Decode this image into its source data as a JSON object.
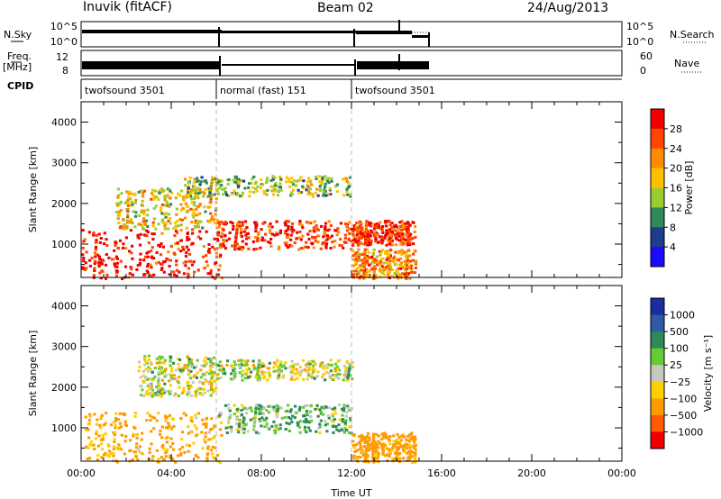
{
  "header": {
    "station": "Inuvik (fitACF)",
    "beam": "Beam 02",
    "date": "24/Aug/2013"
  },
  "side_labels": {
    "nsky": "N.Sky",
    "nsearch": "N.Search",
    "freq_top": "Freq.",
    "freq_unit": "[MHz]",
    "cpid": "CPID",
    "nave": "Nave"
  },
  "nsky_ticks": [
    "10^5",
    "10^0"
  ],
  "freq_ticks_left": [
    "12",
    "8"
  ],
  "freq_ticks_right": [
    "60",
    "0"
  ],
  "cpid_segments": [
    {
      "label": "twofsound 3501",
      "start_h": 0,
      "end_h": 6
    },
    {
      "label": "normal (fast) 151",
      "start_h": 6,
      "end_h": 12
    },
    {
      "label": "twofsound 3501",
      "start_h": 12,
      "end_h": 15.3
    }
  ],
  "power_colorbar": {
    "label": "Power [dB]",
    "ticks": [
      "28",
      "24",
      "20",
      "16",
      "12",
      "8",
      "4"
    ],
    "colors": [
      "#ee0000",
      "#ff4500",
      "#ff8c00",
      "#ffc000",
      "#9acd32",
      "#2e8b57",
      "#1e3c8c",
      "#1a0aff"
    ]
  },
  "velocity_colorbar": {
    "label": "Velocity [m s⁻¹]",
    "ticks": [
      "1000",
      "500",
      "100",
      "25",
      "−25",
      "−100",
      "−500",
      "−1000"
    ],
    "colors": [
      "#1a2ea0",
      "#2e5aa8",
      "#2e8b57",
      "#66cc33",
      "#c8c8c0",
      "#ffd000",
      "#ff9a00",
      "#ff5a00",
      "#ee0000"
    ]
  },
  "chart_data": [
    {
      "type": "heatmap",
      "title": "",
      "xlabel": "",
      "ylabel": "Slant Range [km]",
      "colorbar": "Power [dB]",
      "xlim": [
        0,
        24
      ],
      "ylim": [
        180,
        4500
      ],
      "x_ticks": [
        "00:00",
        "04:00",
        "08:00",
        "12:00",
        "16:00",
        "20:00",
        "00:00"
      ],
      "y_ticks": [
        1000,
        2000,
        3000,
        4000
      ],
      "echo_bands": [
        {
          "t_start": 0,
          "t_end": 6.2,
          "range_low": 180,
          "range_high": 1400,
          "power_db": 26
        },
        {
          "t_start": 1.5,
          "t_end": 6,
          "range_low": 1400,
          "range_high": 2400,
          "power_db": 14
        },
        {
          "t_start": 6,
          "t_end": 12,
          "range_low": 900,
          "range_high": 1600,
          "power_db": 24
        },
        {
          "t_start": 4.5,
          "t_end": 12,
          "range_low": 2200,
          "range_high": 2700,
          "power_db": 10
        },
        {
          "t_start": 12,
          "t_end": 14.8,
          "range_low": 180,
          "range_high": 900,
          "power_db": 18
        },
        {
          "t_start": 12,
          "t_end": 14.8,
          "range_low": 1000,
          "range_high": 1600,
          "power_db": 24
        }
      ]
    },
    {
      "type": "heatmap",
      "title": "",
      "xlabel": "Time UT",
      "ylabel": "Slant Range [km]",
      "colorbar": "Velocity [m s⁻¹]",
      "xlim": [
        0,
        24
      ],
      "ylim": [
        180,
        4500
      ],
      "x_ticks": [
        "00:00",
        "04:00",
        "08:00",
        "12:00",
        "16:00",
        "20:00",
        "00:00"
      ],
      "y_ticks": [
        1000,
        2000,
        3000,
        4000
      ],
      "echo_bands": [
        {
          "t_start": 0,
          "t_end": 6.2,
          "range_low": 180,
          "range_high": 1400,
          "velocity": -150
        },
        {
          "t_start": 2.5,
          "t_end": 6,
          "range_low": 1800,
          "range_high": 2800,
          "velocity": 0
        },
        {
          "t_start": 6,
          "t_end": 12,
          "range_low": 900,
          "range_high": 1600,
          "velocity": 80
        },
        {
          "t_start": 6,
          "t_end": 12,
          "range_low": 2200,
          "range_high": 2700,
          "velocity": 0
        },
        {
          "t_start": 12,
          "t_end": 14.8,
          "range_low": 180,
          "range_high": 900,
          "velocity": -200
        }
      ]
    }
  ]
}
